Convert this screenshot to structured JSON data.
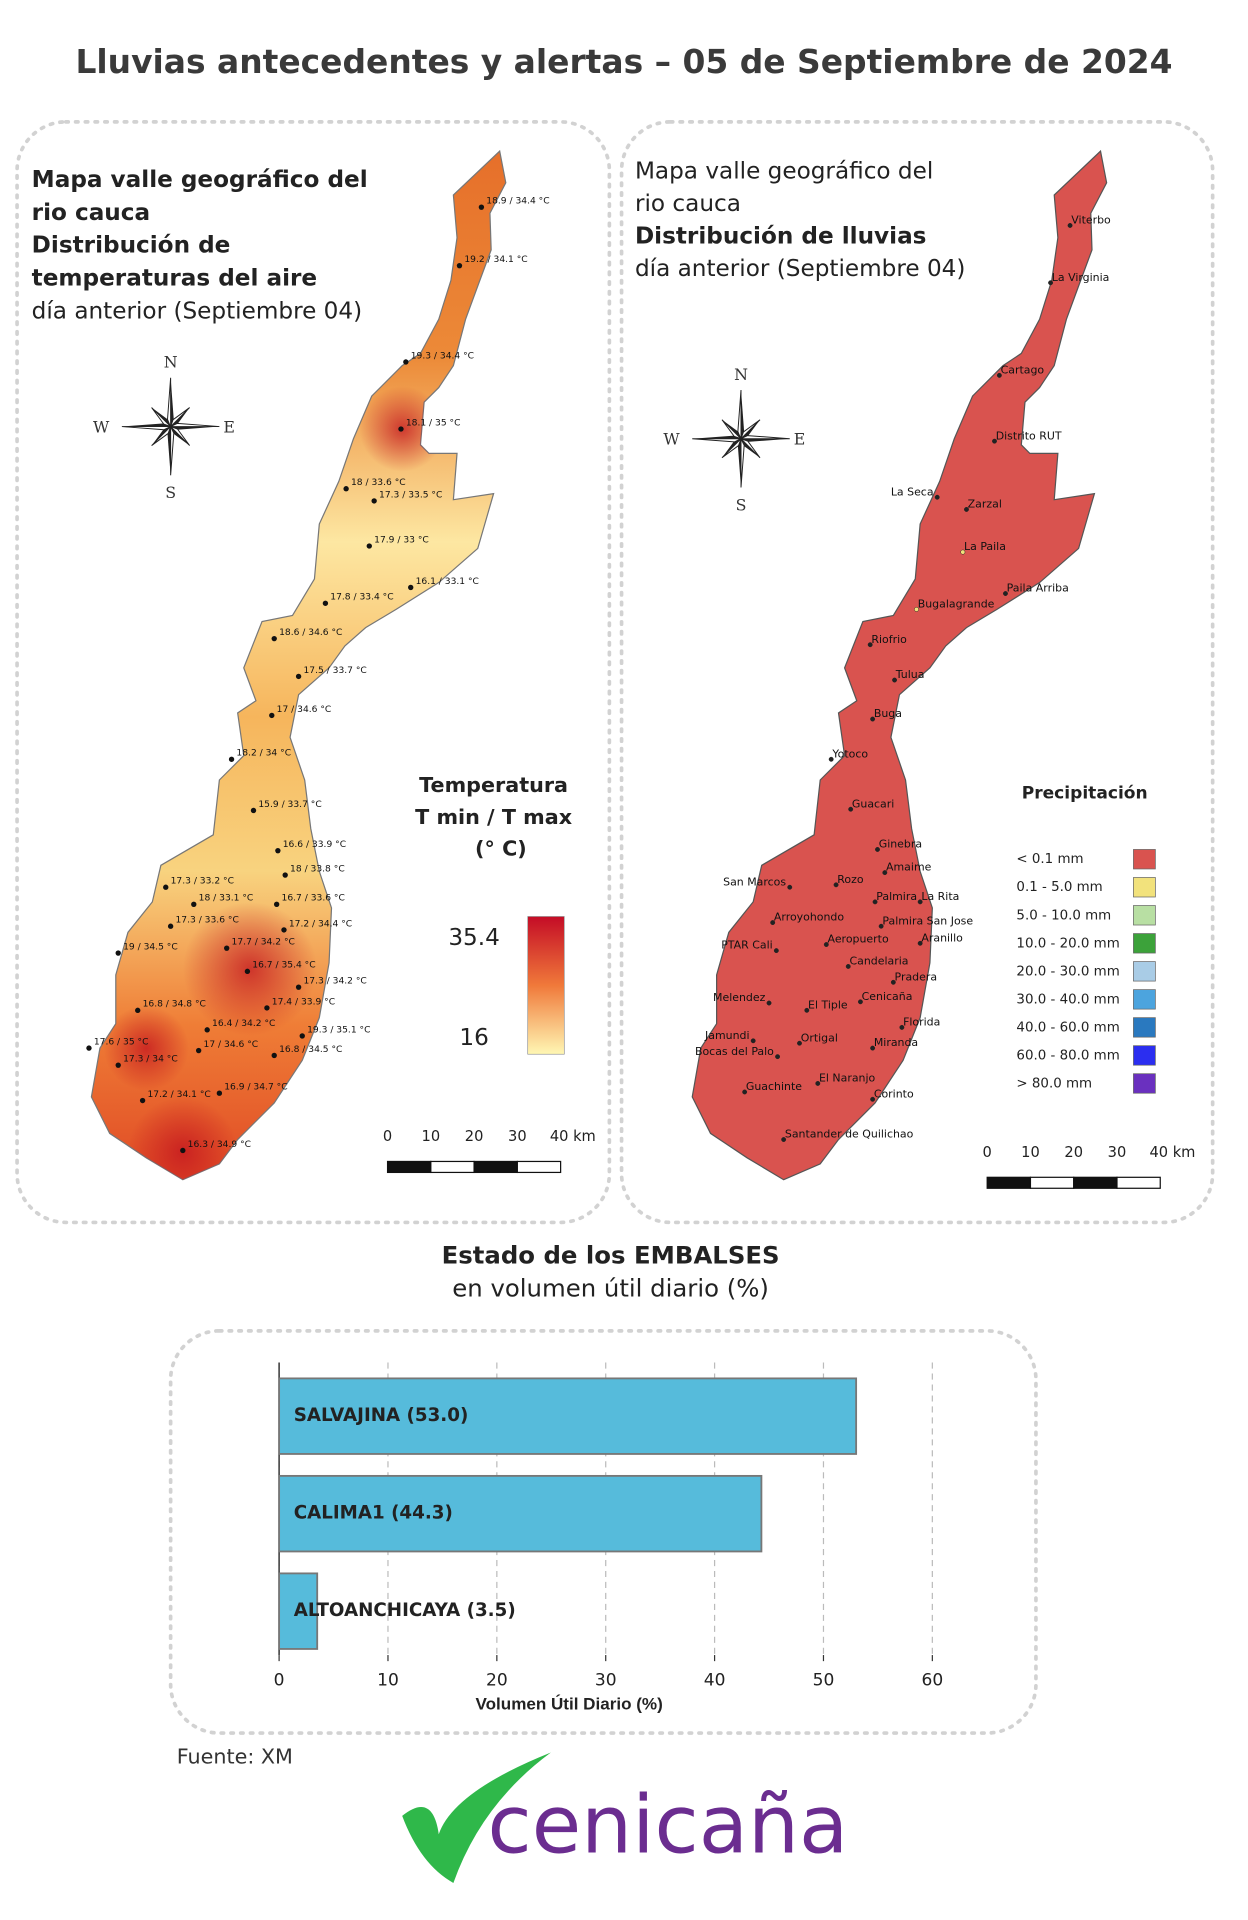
{
  "title": "Lluvias antecedentes y alertas – 05 de Septiembre de 2024",
  "temperature_map": {
    "heading": [
      "Mapa valle geográfico del",
      "rio cauca",
      "Distribución de",
      "temperaturas del aire",
      "día anterior (Septiembre 04)"
    ],
    "compass": [
      "N",
      "S",
      "E",
      "W"
    ],
    "stations": [
      "18.9 / 34.4 °C",
      "19.2 / 34.1 °C",
      "19.3 / 34.4 °C",
      "18.1 / 35 °C",
      "18 / 33.6 °C",
      "17.3 / 33.5 °C",
      "17.9 / 33 °C",
      "16.1 / 33.1 °C",
      "17.8 / 33.4 °C",
      "18.6 / 34.6 °C",
      "17.5 / 33.7 °C",
      "17 / 34.6 °C",
      "18.2 / 34 °C",
      "15.9 / 33.7 °C",
      "16.6 / 33.9 °C",
      "18 / 33.8 °C",
      "17.3 / 33.2 °C",
      "18 / 33.1 °C",
      "16.7 / 33.6 °C",
      "17.3 / 33.6 °C",
      "17.2 / 34.4 °C",
      "17.7 / 34.2 °C",
      "19 / 34.5 °C",
      "16.7 / 35.4 °C",
      "17.3 / 34.2 °C",
      "17.4 / 33.9 °C",
      "16.8 / 34.8 °C",
      "16.4 / 34.2 °C",
      "19.3 / 35.1 °C",
      "17.6 / 35 °C",
      "17 / 34.6 °C",
      "16.8 / 34.5 °C",
      "17.3 / 34 °C",
      "16.9 / 34.7 °C",
      "17.2 / 34.1 °C",
      "16.3 / 34.9 °C"
    ],
    "legend": {
      "title": [
        "Temperatura",
        "T min / T max",
        "(° C)"
      ],
      "max": 35.4,
      "min": 16
    },
    "scale": [
      "0",
      "10",
      "20",
      "30",
      "40 km"
    ]
  },
  "rain_map": {
    "heading": [
      "Mapa valle geográfico del",
      "rio cauca",
      "Distribución de lluvias",
      "día anterior (Septiembre 04)"
    ],
    "compass": [
      "N",
      "S",
      "E",
      "W"
    ],
    "places": [
      "Viterbo",
      "La Virginia",
      "Cartago",
      "Distrito RUT",
      "La Seca",
      "Zarzal",
      "La Paila",
      "Paila Arriba",
      "Bugalagrande",
      "Riofrio",
      "Tulua",
      "Buga",
      "Yotoco",
      "Guacari",
      "Ginebra",
      "Amaime",
      "San Marcos",
      "Rozo",
      "La Rita",
      "Palmira",
      "Arroyohondo",
      "Palmira San Jose",
      "Aeropuerto",
      "Aranillo",
      "PTAR Cali",
      "Candelaria",
      "Pradera",
      "Melendez",
      "Cenicaña",
      "El Tiple",
      "Florida",
      "Jamundi",
      "Ortigal",
      "Miranda",
      "Bocas del Palo",
      "El Naranjo",
      "Guachinte",
      "Corinto",
      "Santander de Quilichao"
    ],
    "legend": {
      "title": "Precipitación",
      "classes": [
        {
          "label": "< 0.1 mm",
          "color": "#d9534f"
        },
        {
          "label": "0.1 - 5.0 mm",
          "color": "#f2e27c"
        },
        {
          "label": "5.0 - 10.0 mm",
          "color": "#b8dfa3"
        },
        {
          "label": "10.0 - 20.0 mm",
          "color": "#3ca23a"
        },
        {
          "label": "20.0 - 30.0 mm",
          "color": "#a9cce6"
        },
        {
          "label": "30.0 - 40.0 mm",
          "color": "#4ca4de"
        },
        {
          "label": "40.0 - 60.0 mm",
          "color": "#2a79bf"
        },
        {
          "label": "60.0 - 80.0 mm",
          "color": "#2b2ef0"
        },
        {
          "label": "> 80.0 mm",
          "color": "#6a30bf"
        }
      ]
    },
    "scale": [
      "0",
      "10",
      "20",
      "30",
      "40 km"
    ]
  },
  "chart_data": {
    "type": "bar",
    "orientation": "horizontal",
    "title": "Estado de los EMBALSES",
    "subtitle": "en volumen útil diario (%)",
    "categories": [
      "SALVAJINA (53.0)",
      "CALIMA1 (44.3)",
      "ALTOANCHICAYA (3.5)"
    ],
    "values": [
      53.0,
      44.3,
      3.5
    ],
    "color": "#56bbdb",
    "xlim": [
      0,
      60
    ],
    "xticks": [
      0,
      10,
      20,
      30,
      40,
      50,
      60
    ],
    "xlabel": "Volumen Útil Diario (%)",
    "grid": true
  },
  "source": "Fuente: XM",
  "logo": "cenicaña"
}
